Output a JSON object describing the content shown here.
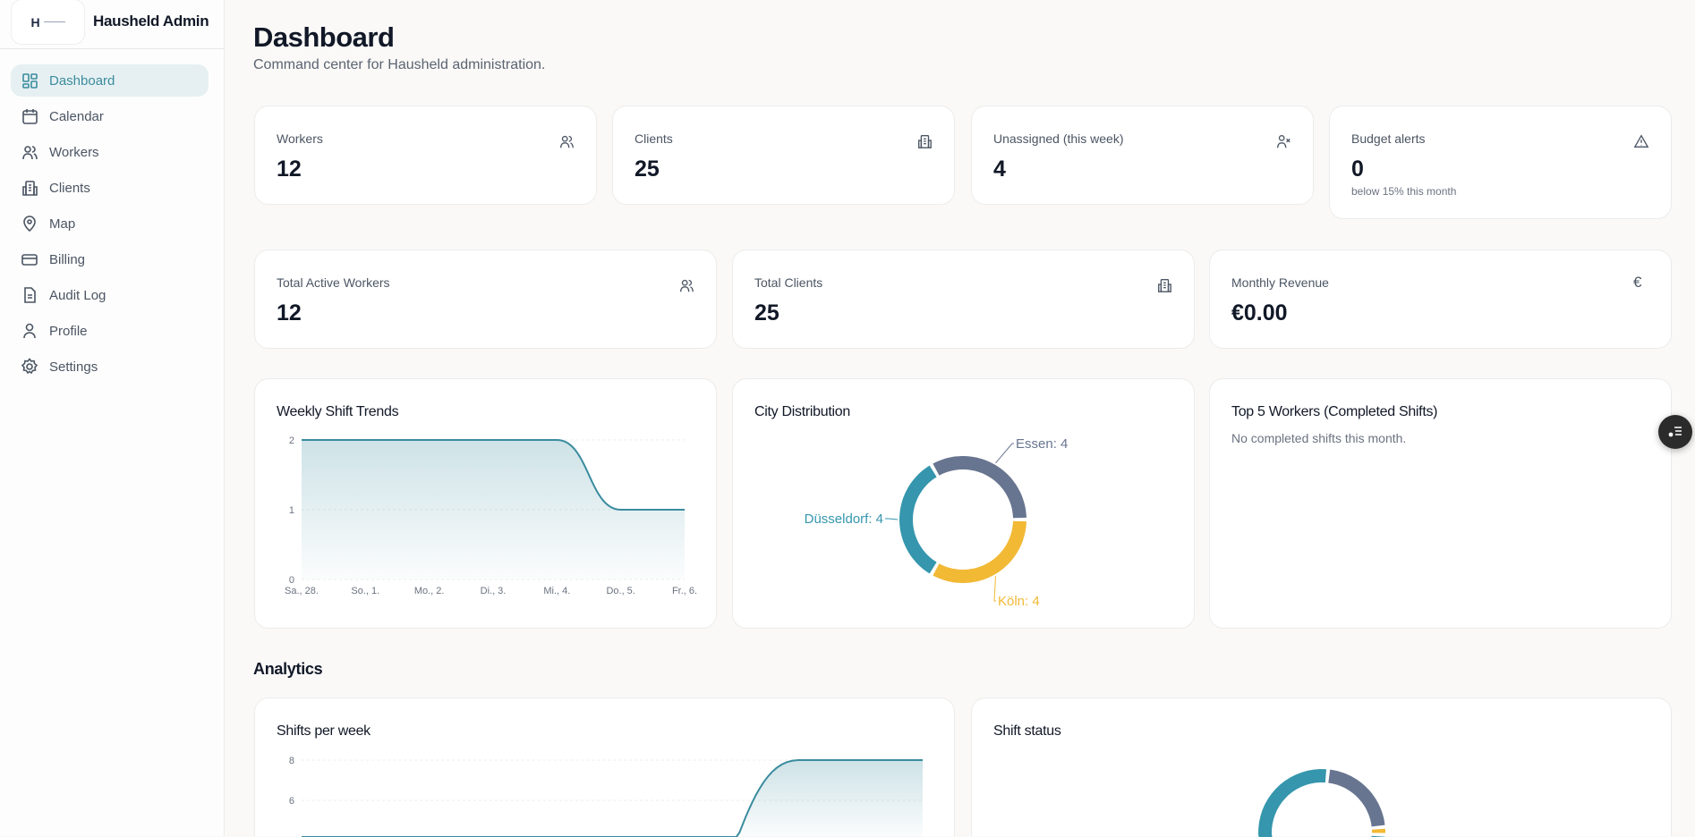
{
  "app": {
    "title": "Hausheld Admin",
    "logo_letter": "H"
  },
  "sidebar": {
    "items": [
      {
        "label": "Dashboard",
        "icon": "layout-grid-icon",
        "active": true
      },
      {
        "label": "Calendar",
        "icon": "calendar-icon"
      },
      {
        "label": "Workers",
        "icon": "users-icon"
      },
      {
        "label": "Clients",
        "icon": "building-icon"
      },
      {
        "label": "Map",
        "icon": "map-pin-icon"
      },
      {
        "label": "Billing",
        "icon": "credit-card-icon"
      },
      {
        "label": "Audit Log",
        "icon": "file-text-icon"
      },
      {
        "label": "Profile",
        "icon": "user-icon"
      },
      {
        "label": "Settings",
        "icon": "gear-icon"
      }
    ]
  },
  "header": {
    "title": "Dashboard",
    "subtitle": "Command center for Hausheld administration."
  },
  "stats_top": [
    {
      "label": "Workers",
      "value": "12",
      "icon": "users-icon"
    },
    {
      "label": "Clients",
      "value": "25",
      "icon": "building-icon"
    },
    {
      "label": "Unassigned (this week)",
      "value": "4",
      "icon": "user-x-icon"
    },
    {
      "label": "Budget alerts",
      "value": "0",
      "note": "below 15% this month",
      "icon": "alert-triangle-icon"
    }
  ],
  "stats_mid": [
    {
      "label": "Total Active Workers",
      "value": "12",
      "icon": "users-icon"
    },
    {
      "label": "Total Clients",
      "value": "25",
      "icon": "building-icon"
    },
    {
      "label": "Monthly Revenue",
      "value": "€0.00",
      "icon": "euro-icon",
      "glyph": "€"
    }
  ],
  "top_workers": {
    "title": "Top 5 Workers (Completed Shifts)",
    "empty": "No completed shifts this month."
  },
  "analytics": {
    "title": "Analytics"
  },
  "colors": {
    "accent": "#3a8c9e",
    "teal": "#3596ad",
    "slate": "#687590",
    "yellow": "#f2b935"
  },
  "chart_data": [
    {
      "type": "area",
      "title": "Weekly Shift Trends",
      "categories": [
        "Sa., 28.",
        "So., 1.",
        "Mo., 2.",
        "Di., 3.",
        "Mi., 4.",
        "Do., 5.",
        "Fr., 6."
      ],
      "values": [
        2,
        2,
        2,
        2,
        2,
        1,
        1
      ],
      "yticks": [
        "0",
        "1",
        "2"
      ],
      "ylim": [
        0,
        2
      ],
      "grid": true
    },
    {
      "type": "pie",
      "title": "City Distribution",
      "slices": [
        {
          "label": "Essen: 4",
          "name": "Essen",
          "value": 4,
          "color": "#687590"
        },
        {
          "label": "Köln: 4",
          "name": "Köln",
          "value": 4,
          "color": "#f2b935"
        },
        {
          "label": "Düsseldorf: 4",
          "name": "Düsseldorf",
          "value": 4,
          "color": "#3596ad"
        }
      ]
    },
    {
      "type": "area",
      "title": "Shifts per week",
      "values": [
        0,
        0,
        0,
        0,
        8,
        8
      ],
      "yticks": [
        "8",
        "6"
      ],
      "ylim": [
        0,
        8
      ],
      "grid": true
    },
    {
      "type": "pie",
      "title": "Shift status",
      "slices": [
        {
          "value": 22,
          "color": "#687590"
        },
        {
          "value": 2,
          "color": "#f2b935"
        },
        {
          "value": 76,
          "color": "#3596ad"
        }
      ]
    }
  ]
}
